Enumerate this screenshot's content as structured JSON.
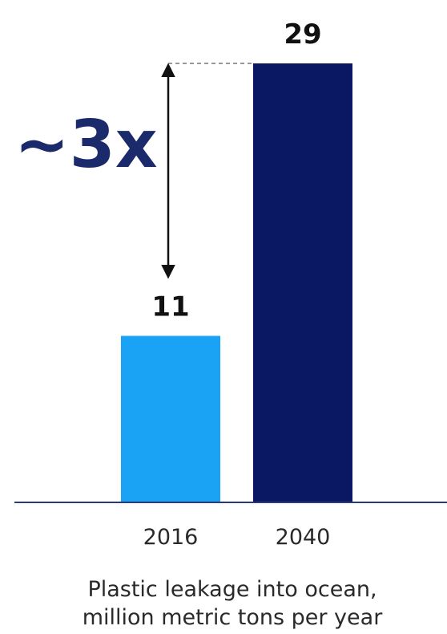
{
  "chart_data": {
    "type": "bar",
    "categories": [
      "2016",
      "2040"
    ],
    "values": [
      11,
      29
    ],
    "value_labels": [
      "11",
      "29"
    ],
    "colors": [
      "#1aa3f5",
      "#0a1763"
    ],
    "annotation": "~3x",
    "annotation_color": "#1b2a6b",
    "xlabel": "Plastic leakage into ocean, million metric tons per year",
    "xlabel_lines": [
      "Plastic leakage into ocean,",
      "million metric tons per year"
    ],
    "ylim": [
      0,
      29
    ],
    "grid": false,
    "legend": "none"
  },
  "colors": {
    "axis": "#2a3a7a",
    "arrow": "#111111"
  }
}
